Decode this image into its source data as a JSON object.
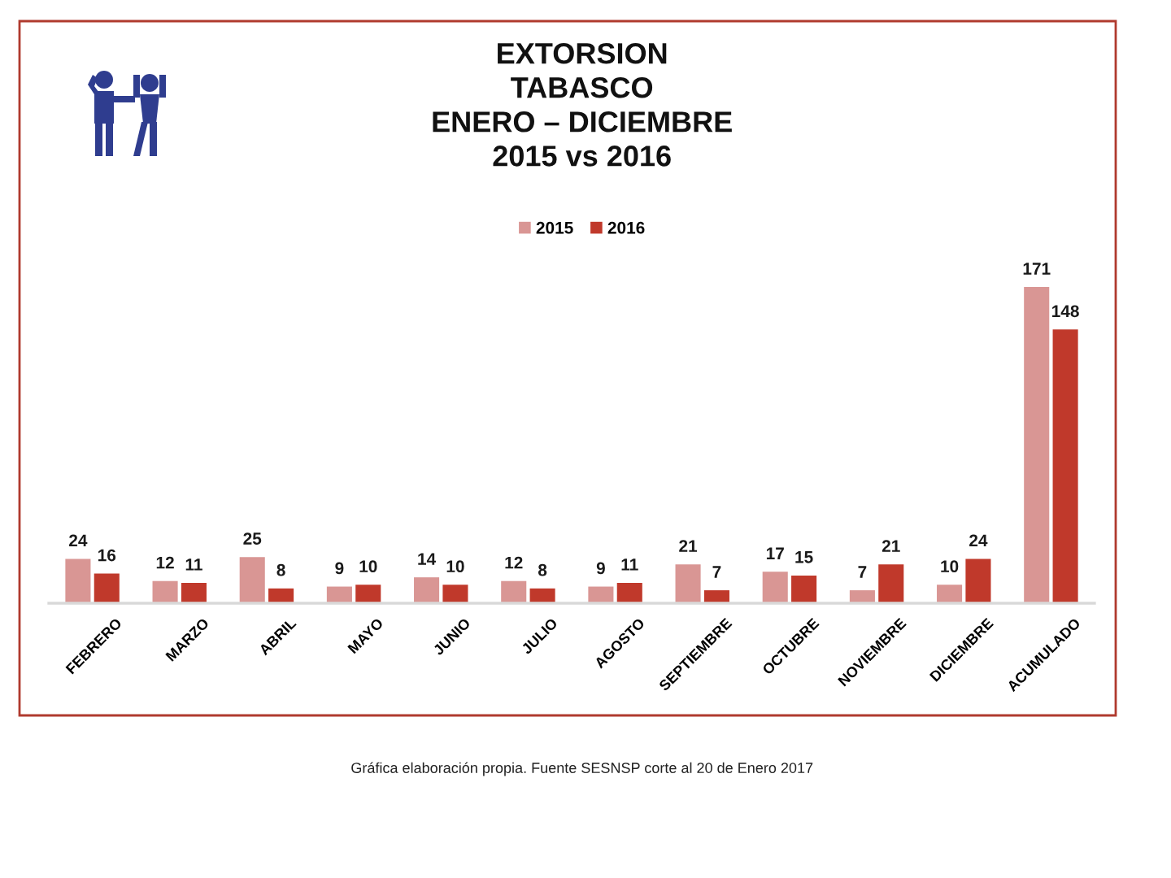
{
  "chart_data": {
    "type": "bar",
    "title": "EXTORSION\nTABASCO\nENERO – DICIEMBRE\n2015 vs 2016",
    "categories": [
      "FEBRERO",
      "MARZO",
      "ABRIL",
      "MAYO",
      "JUNIO",
      "JULIO",
      "AGOSTO",
      "SEPTIEMBRE",
      "OCTUBRE",
      "NOVIEMBRE",
      "DICIEMBRE",
      "ACUMULADO"
    ],
    "series": [
      {
        "name": "2015",
        "color": "#d99694",
        "values": [
          24,
          12,
          25,
          9,
          14,
          12,
          9,
          21,
          17,
          7,
          10,
          171
        ]
      },
      {
        "name": "2016",
        "color": "#c0392b",
        "values": [
          16,
          11,
          8,
          10,
          10,
          8,
          11,
          7,
          15,
          21,
          24,
          148
        ]
      }
    ],
    "data_labels": true,
    "legend": "top",
    "tick_labels": "x",
    "annotations": [
      "Gráfica elaboración propia. Fuente SESNSP corte al 20 de Enero 2017"
    ]
  }
}
